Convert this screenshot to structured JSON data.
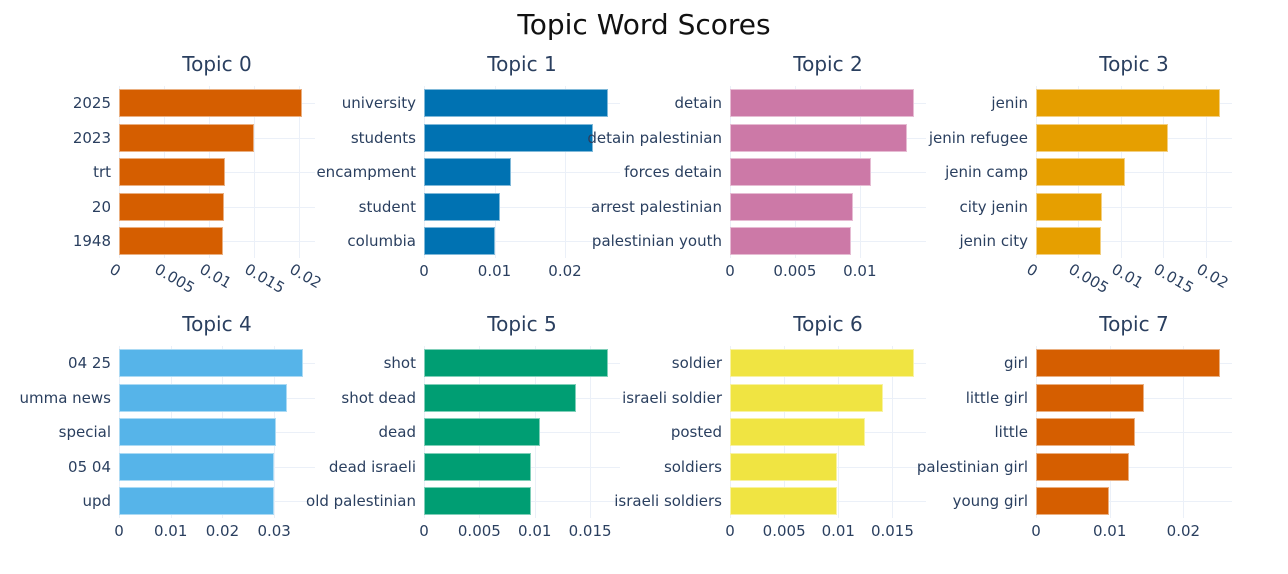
{
  "title": "Topic Word Scores",
  "chart_data": {
    "type": "bar",
    "orientation": "horizontal",
    "title": "Topic Word Scores",
    "layout": {
      "rows": 2,
      "cols": 4,
      "grid": true,
      "legend": "none"
    },
    "subplots": [
      {
        "title": "Topic 0",
        "color": "#D55E00",
        "words": [
          "2025",
          "2023",
          "trt",
          "20",
          "1948"
        ],
        "values": [
          0.0204,
          0.015,
          0.0118,
          0.0117,
          0.0116
        ],
        "xlim": [
          0,
          0.0218
        ],
        "ticks": [
          "0",
          "0.005",
          "0.01",
          "0.015",
          "0.02"
        ],
        "tick_values": [
          0,
          0.005,
          0.01,
          0.015,
          0.02
        ],
        "ticks_rotated": true
      },
      {
        "title": "Topic 1",
        "color": "#0072B2",
        "words": [
          "university",
          "students",
          "encampment",
          "student",
          "columbia"
        ],
        "values": [
          0.0261,
          0.024,
          0.0123,
          0.0108,
          0.0101
        ],
        "xlim": [
          0,
          0.0278
        ],
        "ticks": [
          "0",
          "0.01",
          "0.02"
        ],
        "tick_values": [
          0,
          0.01,
          0.02
        ],
        "ticks_rotated": false
      },
      {
        "title": "Topic 2",
        "color": "#CC79A7",
        "words": [
          "detain",
          "detain palestinian",
          "forces detain",
          "arrest palestinian",
          "palestinian youth"
        ],
        "values": [
          0.0142,
          0.0136,
          0.0109,
          0.0095,
          0.0093
        ],
        "xlim": [
          0,
          0.0151
        ],
        "ticks": [
          "0",
          "0.005",
          "0.01"
        ],
        "tick_values": [
          0,
          0.005,
          0.01
        ],
        "ticks_rotated": false
      },
      {
        "title": "Topic 3",
        "color": "#E69F00",
        "words": [
          "jenin",
          "jenin refugee",
          "jenin camp",
          "city jenin",
          "jenin city"
        ],
        "values": [
          0.0217,
          0.0155,
          0.0105,
          0.0078,
          0.0077
        ],
        "xlim": [
          0,
          0.0231
        ],
        "ticks": [
          "0",
          "0.005",
          "0.01",
          "0.015",
          "0.02"
        ],
        "tick_values": [
          0,
          0.005,
          0.01,
          0.015,
          0.02
        ],
        "ticks_rotated": true
      },
      {
        "title": "Topic 4",
        "color": "#56B4E9",
        "words": [
          "04 25",
          "umma news",
          "special",
          "05 04",
          "upd"
        ],
        "values": [
          0.0356,
          0.0325,
          0.0304,
          0.03,
          0.03
        ],
        "xlim": [
          0,
          0.0379
        ],
        "ticks": [
          "0",
          "0.01",
          "0.02",
          "0.03"
        ],
        "tick_values": [
          0,
          0.01,
          0.02,
          0.03
        ],
        "ticks_rotated": false
      },
      {
        "title": "Topic 5",
        "color": "#009E73",
        "words": [
          "shot",
          "shot dead",
          "dead",
          "dead israeli",
          "old palestinian"
        ],
        "values": [
          0.0166,
          0.0137,
          0.0105,
          0.0097,
          0.0097
        ],
        "xlim": [
          0,
          0.0177
        ],
        "ticks": [
          "0",
          "0.005",
          "0.01",
          "0.015"
        ],
        "tick_values": [
          0,
          0.005,
          0.01,
          0.015
        ],
        "ticks_rotated": false
      },
      {
        "title": "Topic 6",
        "color": "#F0E442",
        "words": [
          "soldier",
          "israeli soldier",
          "posted",
          "soldiers",
          "israeli soldiers"
        ],
        "values": [
          0.017,
          0.0141,
          0.0125,
          0.0099,
          0.0099
        ],
        "xlim": [
          0,
          0.0181
        ],
        "ticks": [
          "0",
          "0.005",
          "0.01",
          "0.015"
        ],
        "tick_values": [
          0,
          0.005,
          0.01,
          0.015
        ],
        "ticks_rotated": false
      },
      {
        "title": "Topic 7",
        "color": "#D55E00",
        "words": [
          "girl",
          "little girl",
          "little",
          "palestinian girl",
          "young girl"
        ],
        "values": [
          0.025,
          0.0146,
          0.0135,
          0.0126,
          0.0099
        ],
        "xlim": [
          0,
          0.0266
        ],
        "ticks": [
          "0",
          "0.01",
          "0.02"
        ],
        "tick_values": [
          0,
          0.01,
          0.02
        ],
        "ticks_rotated": false
      }
    ]
  }
}
